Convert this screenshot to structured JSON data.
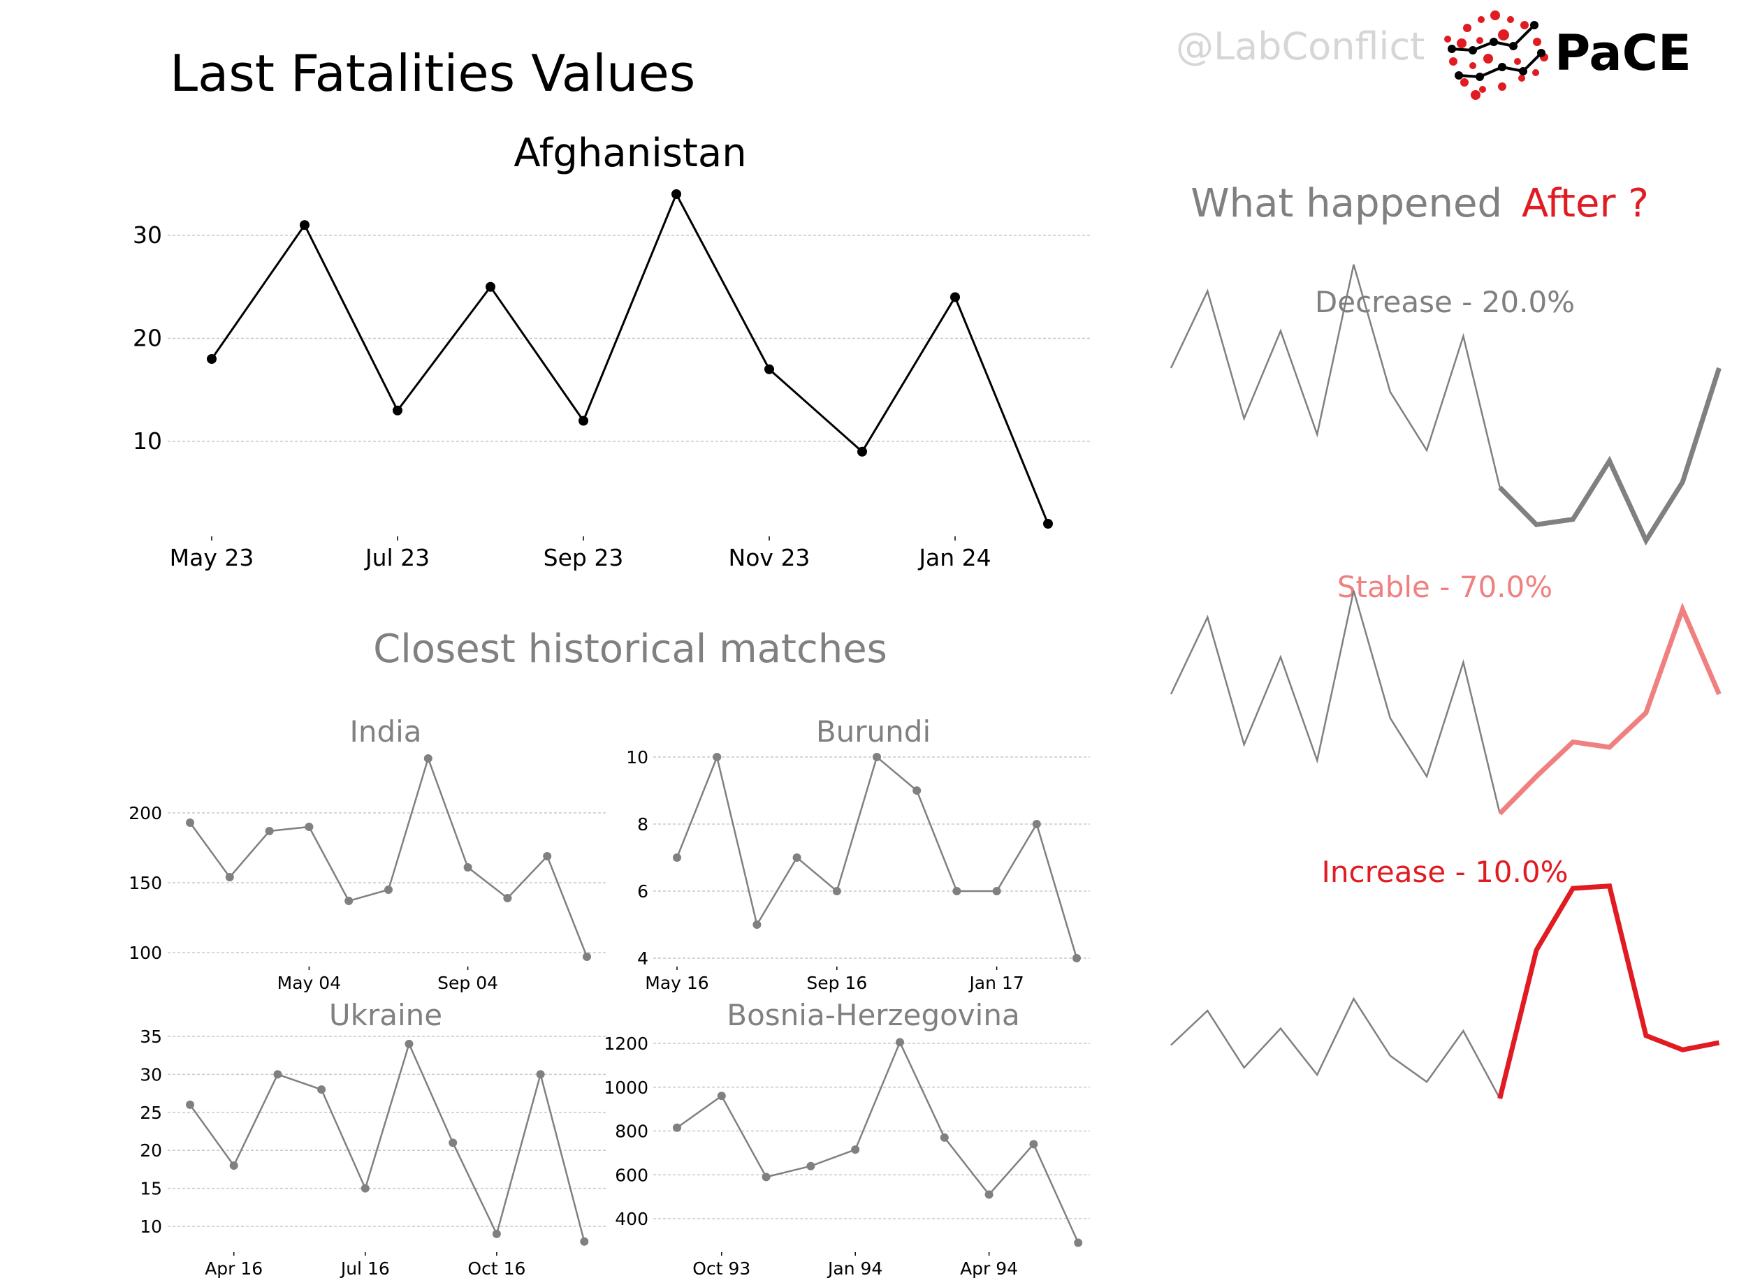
{
  "header": {
    "title": "Last Fatalities Values",
    "handle": "@LabConflict",
    "brand": "PaCE"
  },
  "colors": {
    "main_line": "#000000",
    "match_line": "#808080",
    "decrease": "#808080",
    "stable": "#f08080",
    "increase": "#e01b22",
    "logo_red": "#e01b22"
  },
  "icons": [
    "pace-logo-icon"
  ],
  "sections": {
    "matches_title": "Closest historical matches",
    "whathappened_lead": "What happened",
    "whathappened_accent": "After ?"
  },
  "chart_data": [
    {
      "id": "afghanistan",
      "type": "line",
      "title": "Afghanistan",
      "x": [
        "2023-05",
        "2023-06",
        "2023-07",
        "2023-08",
        "2023-09",
        "2023-10",
        "2023-11",
        "2023-12",
        "2024-01",
        "2024-02"
      ],
      "values": [
        18,
        31,
        13,
        25,
        12,
        34,
        17,
        9,
        24,
        2
      ],
      "xticks": [
        "May 23",
        "Jul 23",
        "Sep 23",
        "Nov 23",
        "Jan 24"
      ],
      "yticks": [
        "10",
        "20",
        "30"
      ],
      "ylim": [
        0,
        36
      ],
      "grid": true
    },
    {
      "id": "india",
      "type": "line",
      "title": "India",
      "values": [
        193,
        154,
        187,
        190,
        137,
        145,
        239,
        161,
        139,
        169,
        97
      ],
      "xticks": [
        "May 04",
        "Sep 04"
      ],
      "yticks": [
        "100",
        "150",
        "200"
      ],
      "ylim": [
        95,
        240
      ],
      "grid": true
    },
    {
      "id": "burundi",
      "type": "line",
      "title": "Burundi",
      "values": [
        7,
        10,
        5,
        7,
        6,
        10,
        9,
        6,
        6,
        8,
        4
      ],
      "xticks": [
        "May 16",
        "Sep 16",
        "Jan 17"
      ],
      "yticks": [
        "4",
        "6",
        "8",
        "10"
      ],
      "ylim": [
        4,
        10
      ],
      "grid": true
    },
    {
      "id": "ukraine",
      "type": "line",
      "title": "Ukraine",
      "values": [
        26,
        18,
        30,
        28,
        15,
        34,
        21,
        9,
        30,
        8
      ],
      "xticks": [
        "Apr 16",
        "Jul 16",
        "Oct 16"
      ],
      "yticks": [
        "10",
        "15",
        "20",
        "25",
        "30",
        "35"
      ],
      "ylim": [
        8,
        35
      ],
      "grid": true
    },
    {
      "id": "bosnia",
      "type": "line",
      "title": "Bosnia-Herzegovina",
      "values": [
        815,
        960,
        590,
        640,
        715,
        1205,
        770,
        510,
        740,
        290
      ],
      "xticks": [
        "Oct 93",
        "Jan 94",
        "Apr 94"
      ],
      "yticks": [
        "400",
        "600",
        "800",
        "1000",
        "1200"
      ],
      "ylim": [
        290,
        1205
      ],
      "grid": true
    },
    {
      "id": "decrease",
      "type": "line",
      "title": "Decrease - 20.0%",
      "history": [
        0.45,
        0.74,
        0.26,
        0.59,
        0.2,
        0.84,
        0.36,
        0.14,
        0.57,
        0.0
      ],
      "future": [
        0.0,
        -0.14,
        -0.12,
        0.1,
        -0.2,
        0.02,
        0.45
      ],
      "grid": false
    },
    {
      "id": "stable",
      "type": "line",
      "title": "Stable - 70.0%",
      "history": [
        0.45,
        0.74,
        0.26,
        0.59,
        0.2,
        0.84,
        0.36,
        0.14,
        0.57,
        0.0
      ],
      "future": [
        0.0,
        0.14,
        0.27,
        0.25,
        0.38,
        0.77,
        0.45
      ],
      "grid": false
    },
    {
      "id": "increase",
      "type": "line",
      "title": "Increase - 10.0%",
      "history": [
        0.45,
        0.74,
        0.26,
        0.59,
        0.2,
        0.84,
        0.36,
        0.14,
        0.57,
        0.0
      ],
      "future": [
        0.0,
        1.25,
        1.77,
        1.79,
        0.53,
        0.41,
        0.47
      ],
      "grid": false
    }
  ]
}
